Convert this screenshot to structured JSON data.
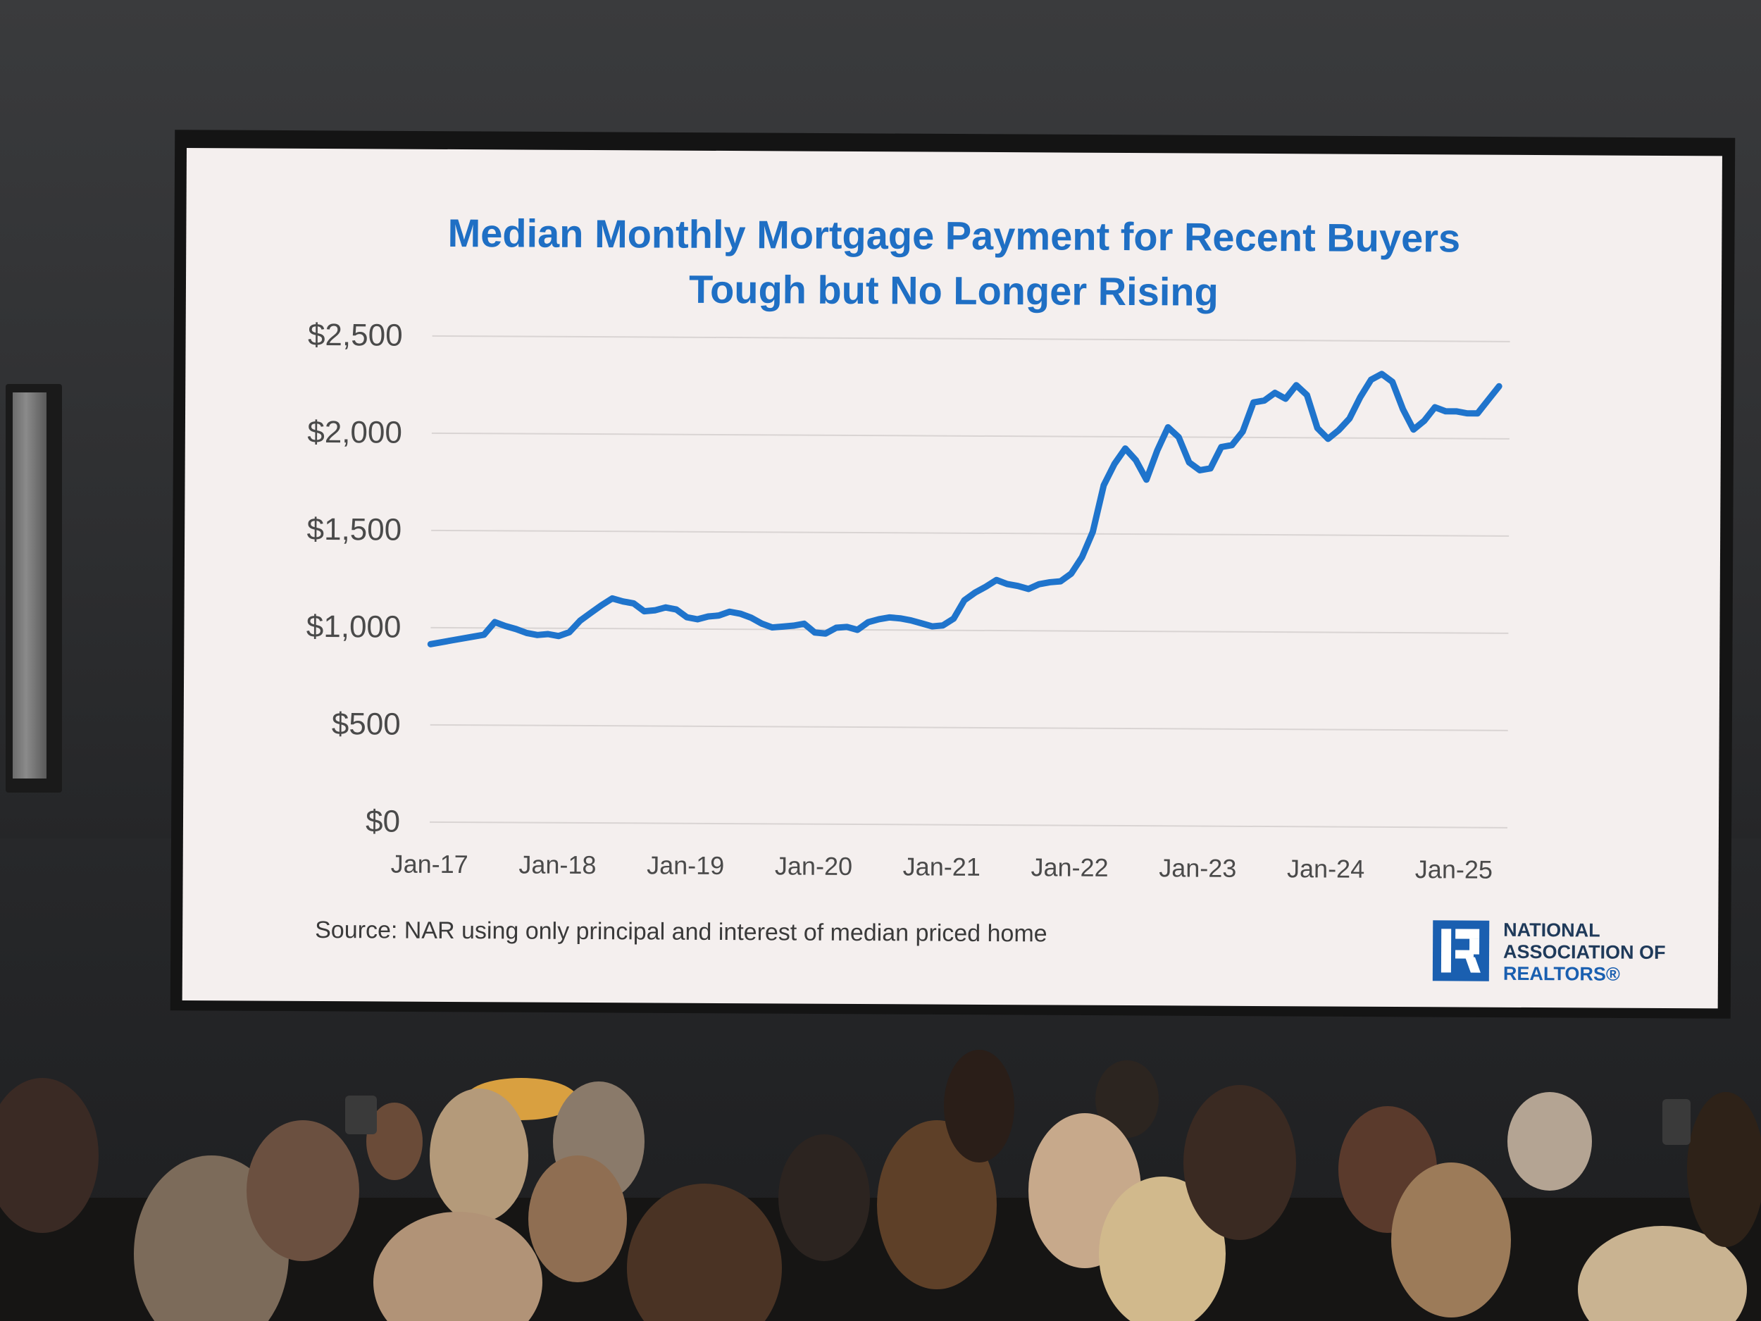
{
  "slide": {
    "title_line1": "Median Monthly Mortgage Payment for Recent Buyers",
    "title_line2": "Tough but No Longer Rising",
    "source": "Source: NAR using only principal and interest of median priced home",
    "logo": {
      "line1": "NATIONAL",
      "line2": "ASSOCIATION OF",
      "line3": "REALTORS®"
    }
  },
  "colors": {
    "accent": "#1f6fc4",
    "line": "#1f74cc",
    "grid": "#d9d4d3",
    "text": "#4a4a4a"
  },
  "chart_data": {
    "type": "line",
    "title": "Median Monthly Mortgage Payment for Recent Buyers Tough but No Longer Rising",
    "xlabel": "",
    "ylabel": "",
    "ylim": [
      0,
      2500
    ],
    "yticks": [
      0,
      500,
      1000,
      1500,
      2000,
      2500
    ],
    "ytick_labels": [
      "$0",
      "$500",
      "$1,000",
      "$1,500",
      "$2,000",
      "$2,500"
    ],
    "xtick_labels": [
      "Jan-17",
      "Jan-18",
      "Jan-19",
      "Jan-20",
      "Jan-21",
      "Jan-22",
      "Jan-23",
      "Jan-24",
      "Jan-25"
    ],
    "xtick_months": [
      0,
      12,
      24,
      36,
      48,
      60,
      72,
      84,
      96
    ],
    "x_range_months": [
      0,
      101
    ],
    "grid": true,
    "legend": "none",
    "series": [
      {
        "values": [
          [
            0,
            915
          ],
          [
            2,
            935
          ],
          [
            4,
            955
          ],
          [
            5,
            965
          ],
          [
            6,
            1030
          ],
          [
            7,
            1010
          ],
          [
            8,
            995
          ],
          [
            9,
            975
          ],
          [
            10,
            965
          ],
          [
            11,
            970
          ],
          [
            12,
            960
          ],
          [
            13,
            980
          ],
          [
            14,
            1040
          ],
          [
            15,
            1080
          ],
          [
            16,
            1120
          ],
          [
            17,
            1155
          ],
          [
            18,
            1140
          ],
          [
            19,
            1130
          ],
          [
            20,
            1090
          ],
          [
            21,
            1095
          ],
          [
            22,
            1110
          ],
          [
            23,
            1100
          ],
          [
            24,
            1060
          ],
          [
            25,
            1050
          ],
          [
            26,
            1065
          ],
          [
            27,
            1070
          ],
          [
            28,
            1090
          ],
          [
            29,
            1080
          ],
          [
            30,
            1060
          ],
          [
            31,
            1030
          ],
          [
            32,
            1010
          ],
          [
            33,
            1015
          ],
          [
            34,
            1020
          ],
          [
            35,
            1030
          ],
          [
            36,
            985
          ],
          [
            37,
            980
          ],
          [
            38,
            1010
          ],
          [
            39,
            1015
          ],
          [
            40,
            1000
          ],
          [
            41,
            1040
          ],
          [
            42,
            1055
          ],
          [
            43,
            1065
          ],
          [
            44,
            1060
          ],
          [
            45,
            1050
          ],
          [
            46,
            1035
          ],
          [
            47,
            1020
          ],
          [
            48,
            1025
          ],
          [
            49,
            1060
          ],
          [
            50,
            1155
          ],
          [
            51,
            1195
          ],
          [
            52,
            1225
          ],
          [
            53,
            1260
          ],
          [
            54,
            1240
          ],
          [
            55,
            1230
          ],
          [
            56,
            1215
          ],
          [
            57,
            1240
          ],
          [
            58,
            1250
          ],
          [
            59,
            1255
          ],
          [
            60,
            1295
          ],
          [
            61,
            1380
          ],
          [
            62,
            1510
          ],
          [
            63,
            1750
          ],
          [
            64,
            1860
          ],
          [
            65,
            1940
          ],
          [
            66,
            1880
          ],
          [
            67,
            1780
          ],
          [
            68,
            1930
          ],
          [
            69,
            2050
          ],
          [
            70,
            2000
          ],
          [
            71,
            1870
          ],
          [
            72,
            1830
          ],
          [
            73,
            1840
          ],
          [
            74,
            1950
          ],
          [
            75,
            1960
          ],
          [
            76,
            2030
          ],
          [
            77,
            2180
          ],
          [
            78,
            2190
          ],
          [
            79,
            2230
          ],
          [
            80,
            2200
          ],
          [
            81,
            2270
          ],
          [
            82,
            2220
          ],
          [
            83,
            2050
          ],
          [
            84,
            1995
          ],
          [
            85,
            2040
          ],
          [
            86,
            2100
          ],
          [
            87,
            2210
          ],
          [
            88,
            2300
          ],
          [
            89,
            2330
          ],
          [
            90,
            2290
          ],
          [
            91,
            2150
          ],
          [
            92,
            2045
          ],
          [
            93,
            2090
          ],
          [
            94,
            2160
          ],
          [
            95,
            2140
          ],
          [
            96,
            2140
          ],
          [
            97,
            2130
          ],
          [
            98,
            2130
          ],
          [
            99,
            2200
          ],
          [
            100,
            2270
          ]
        ]
      }
    ]
  }
}
